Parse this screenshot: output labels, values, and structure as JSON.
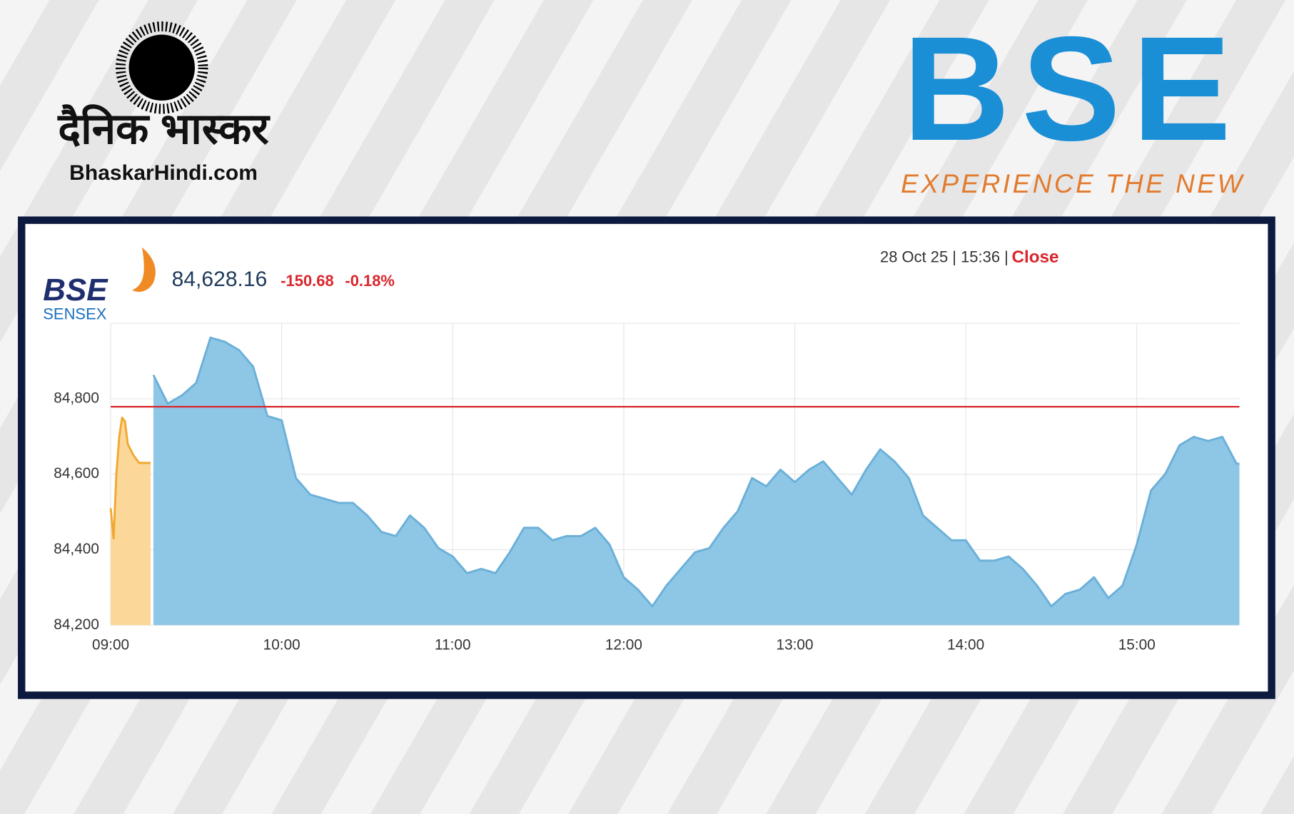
{
  "brand": {
    "hindi_name": "दैनिक भास्कर",
    "site": "BhaskarHindi.com"
  },
  "exchange": {
    "logo": "BSE",
    "tagline": "EXPERIENCE THE NEW"
  },
  "chart_data": {
    "type": "area",
    "logo": "BSE",
    "index_name": "SENSEX",
    "last": "84,628.16",
    "change": "-150.68",
    "change_pct": "-0.18%",
    "timestamp": "28 Oct 25 | 15:36 |",
    "status": "Close",
    "previous_close": 84778.84,
    "previous_close_color": "#d9262c",
    "series": [
      {
        "color": "#f0a830",
        "fill": "#fbd79a",
        "x": [
          "09:00",
          "09:01",
          "09:02",
          "09:03",
          "09:04",
          "09:05",
          "09:06",
          "09:08",
          "09:10",
          "09:14"
        ],
        "values": [
          84510,
          84430,
          84600,
          84700,
          84750,
          84740,
          84680,
          84650,
          84630,
          84630
        ]
      },
      {
        "color": "#6ab0d8",
        "fill": "#8ec6e6",
        "x": [
          "09:15",
          "09:20",
          "09:25",
          "09:30",
          "09:35",
          "09:40",
          "09:45",
          "09:50",
          "09:55",
          "10:00",
          "10:05",
          "10:10",
          "10:15",
          "10:20",
          "10:25",
          "10:30",
          "10:35",
          "10:40",
          "10:45",
          "10:50",
          "10:55",
          "11:00",
          "11:05",
          "11:10",
          "11:15",
          "11:20",
          "11:25",
          "11:30",
          "11:35",
          "11:40",
          "11:45",
          "11:50",
          "11:55",
          "12:00",
          "12:05",
          "12:10",
          "12:15",
          "12:20",
          "12:25",
          "12:30",
          "12:35",
          "12:40",
          "12:45",
          "12:50",
          "12:55",
          "13:00",
          "13:05",
          "13:10",
          "13:15",
          "13:20",
          "13:25",
          "13:30",
          "13:35",
          "13:40",
          "13:45",
          "13:50",
          "13:55",
          "14:00",
          "14:05",
          "14:10",
          "14:15",
          "14:20",
          "14:25",
          "14:30",
          "14:35",
          "14:40",
          "14:45",
          "14:50",
          "14:55",
          "15:00",
          "15:05",
          "15:10",
          "15:15",
          "15:20",
          "15:25",
          "15:30",
          "15:35",
          "15:36"
        ],
        "values": [
          84863,
          84787,
          84809,
          84842,
          84962,
          84951,
          84929,
          84885,
          84754,
          84743,
          84590,
          84546,
          84535,
          84524,
          84524,
          84491,
          84447,
          84436,
          84491,
          84458,
          84404,
          84382,
          84338,
          84349,
          84338,
          84393,
          84458,
          84458,
          84425,
          84436,
          84436,
          84458,
          84414,
          84327,
          84294,
          84250,
          84305,
          84349,
          84393,
          84404,
          84458,
          84502,
          84590,
          84568,
          84612,
          84579,
          84612,
          84634,
          84590,
          84546,
          84612,
          84666,
          84634,
          84590,
          84491,
          84458,
          84425,
          84425,
          84371,
          84371,
          84382,
          84349,
          84305,
          84250,
          84283,
          84294,
          84327,
          84272,
          84305,
          84414,
          84557,
          84601,
          84677,
          84699,
          84688,
          84699,
          84628,
          84628
        ]
      }
    ],
    "xlim": [
      "09:00",
      "15:36"
    ],
    "xticks": [
      "09:00",
      "10:00",
      "11:00",
      "12:00",
      "13:00",
      "14:00",
      "15:00"
    ],
    "ylim": [
      84200,
      85000
    ],
    "yticks": [
      {
        "value": 84200,
        "label": "84,200"
      },
      {
        "value": 84400,
        "label": "84,400"
      },
      {
        "value": 84600,
        "label": "84,600"
      },
      {
        "value": 84800,
        "label": "84,800"
      }
    ],
    "grid": true
  }
}
